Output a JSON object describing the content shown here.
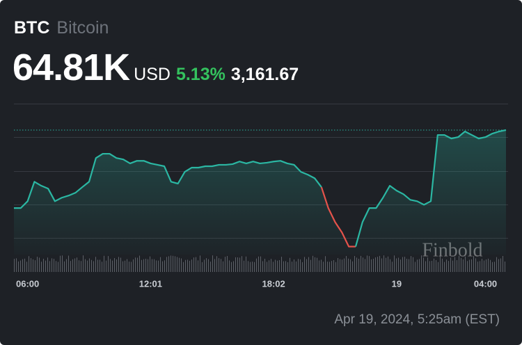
{
  "header": {
    "symbol": "BTC",
    "name": "Bitcoin",
    "price": "64.81K",
    "currency": "USD",
    "change_percent": "5.13%",
    "change": "3,161.67"
  },
  "timestamp": "Apr 19, 2024, 5:25am (EST)",
  "watermark": "Finbold",
  "chart_data": {
    "type": "line",
    "categories": [
      null,
      null,
      "06:00",
      null,
      null,
      null,
      null,
      null,
      null,
      null,
      null,
      null,
      null,
      null,
      null,
      null,
      null,
      null,
      null,
      null,
      "12:01",
      null,
      null,
      null,
      null,
      null,
      null,
      null,
      null,
      null,
      null,
      null,
      null,
      null,
      null,
      null,
      null,
      null,
      "18:02",
      null,
      null,
      null,
      null,
      null,
      null,
      null,
      null,
      null,
      null,
      null,
      null,
      null,
      null,
      null,
      null,
      null,
      "19",
      null,
      null,
      null,
      null,
      null,
      null,
      null,
      null,
      null,
      null,
      null,
      null,
      "04:00",
      null,
      null,
      null
    ],
    "values": [
      61.49,
      61.49,
      61.78,
      62.61,
      62.44,
      62.32,
      61.78,
      61.93,
      62.02,
      62.14,
      62.38,
      62.61,
      63.62,
      63.8,
      63.8,
      63.62,
      63.56,
      63.39,
      63.5,
      63.5,
      63.39,
      63.33,
      63.27,
      62.61,
      62.53,
      63.03,
      63.21,
      63.21,
      63.27,
      63.27,
      63.33,
      63.33,
      63.36,
      63.47,
      63.39,
      63.47,
      63.39,
      63.42,
      63.47,
      63.5,
      63.39,
      63.33,
      63.03,
      62.91,
      62.76,
      62.38,
      61.49,
      60.89,
      60.45,
      59.85,
      59.85,
      60.89,
      61.49,
      61.49,
      61.93,
      62.44,
      62.23,
      62.08,
      61.84,
      61.78,
      61.63,
      61.78,
      64.6,
      64.6,
      64.45,
      64.51,
      64.75,
      64.6,
      64.45,
      64.51,
      64.66,
      64.75,
      64.81
    ],
    "colors": [
      "#2bb7a3",
      "#2bb7a3",
      "#2bb7a3",
      "#2bb7a3",
      "#2bb7a3",
      "#2bb7a3",
      "#2bb7a3",
      "#2bb7a3",
      "#2bb7a3",
      "#2bb7a3",
      "#2bb7a3",
      "#2bb7a3",
      "#2bb7a3",
      "#2bb7a3",
      "#2bb7a3",
      "#2bb7a3",
      "#2bb7a3",
      "#2bb7a3",
      "#2bb7a3",
      "#2bb7a3",
      "#2bb7a3",
      "#2bb7a3",
      "#2bb7a3",
      "#2bb7a3",
      "#2bb7a3",
      "#2bb7a3",
      "#2bb7a3",
      "#2bb7a3",
      "#2bb7a3",
      "#2bb7a3",
      "#2bb7a3",
      "#2bb7a3",
      "#2bb7a3",
      "#2bb7a3",
      "#2bb7a3",
      "#2bb7a3",
      "#2bb7a3",
      "#2bb7a3",
      "#2bb7a3",
      "#2bb7a3",
      "#2bb7a3",
      "#2bb7a3",
      "#2bb7a3",
      "#2bb7a3",
      "#2bb7a3",
      "#2bb7a3",
      "#e5534b",
      "#e5534b",
      "#e5534b",
      "#e5534b",
      "#e5534b",
      "#2bb7a3",
      "#2bb7a3",
      "#2bb7a3",
      "#2bb7a3",
      "#2bb7a3",
      "#2bb7a3",
      "#2bb7a3",
      "#2bb7a3",
      "#2bb7a3",
      "#2bb7a3",
      "#2bb7a3",
      "#2bb7a3",
      "#2bb7a3",
      "#2bb7a3",
      "#2bb7a3",
      "#2bb7a3",
      "#2bb7a3",
      "#2bb7a3",
      "#2bb7a3",
      "#2bb7a3",
      "#2bb7a3",
      "#2bb7a3"
    ],
    "color": "#2bb7a3",
    "ylim": [
      58.8,
      66.2
    ]
  }
}
